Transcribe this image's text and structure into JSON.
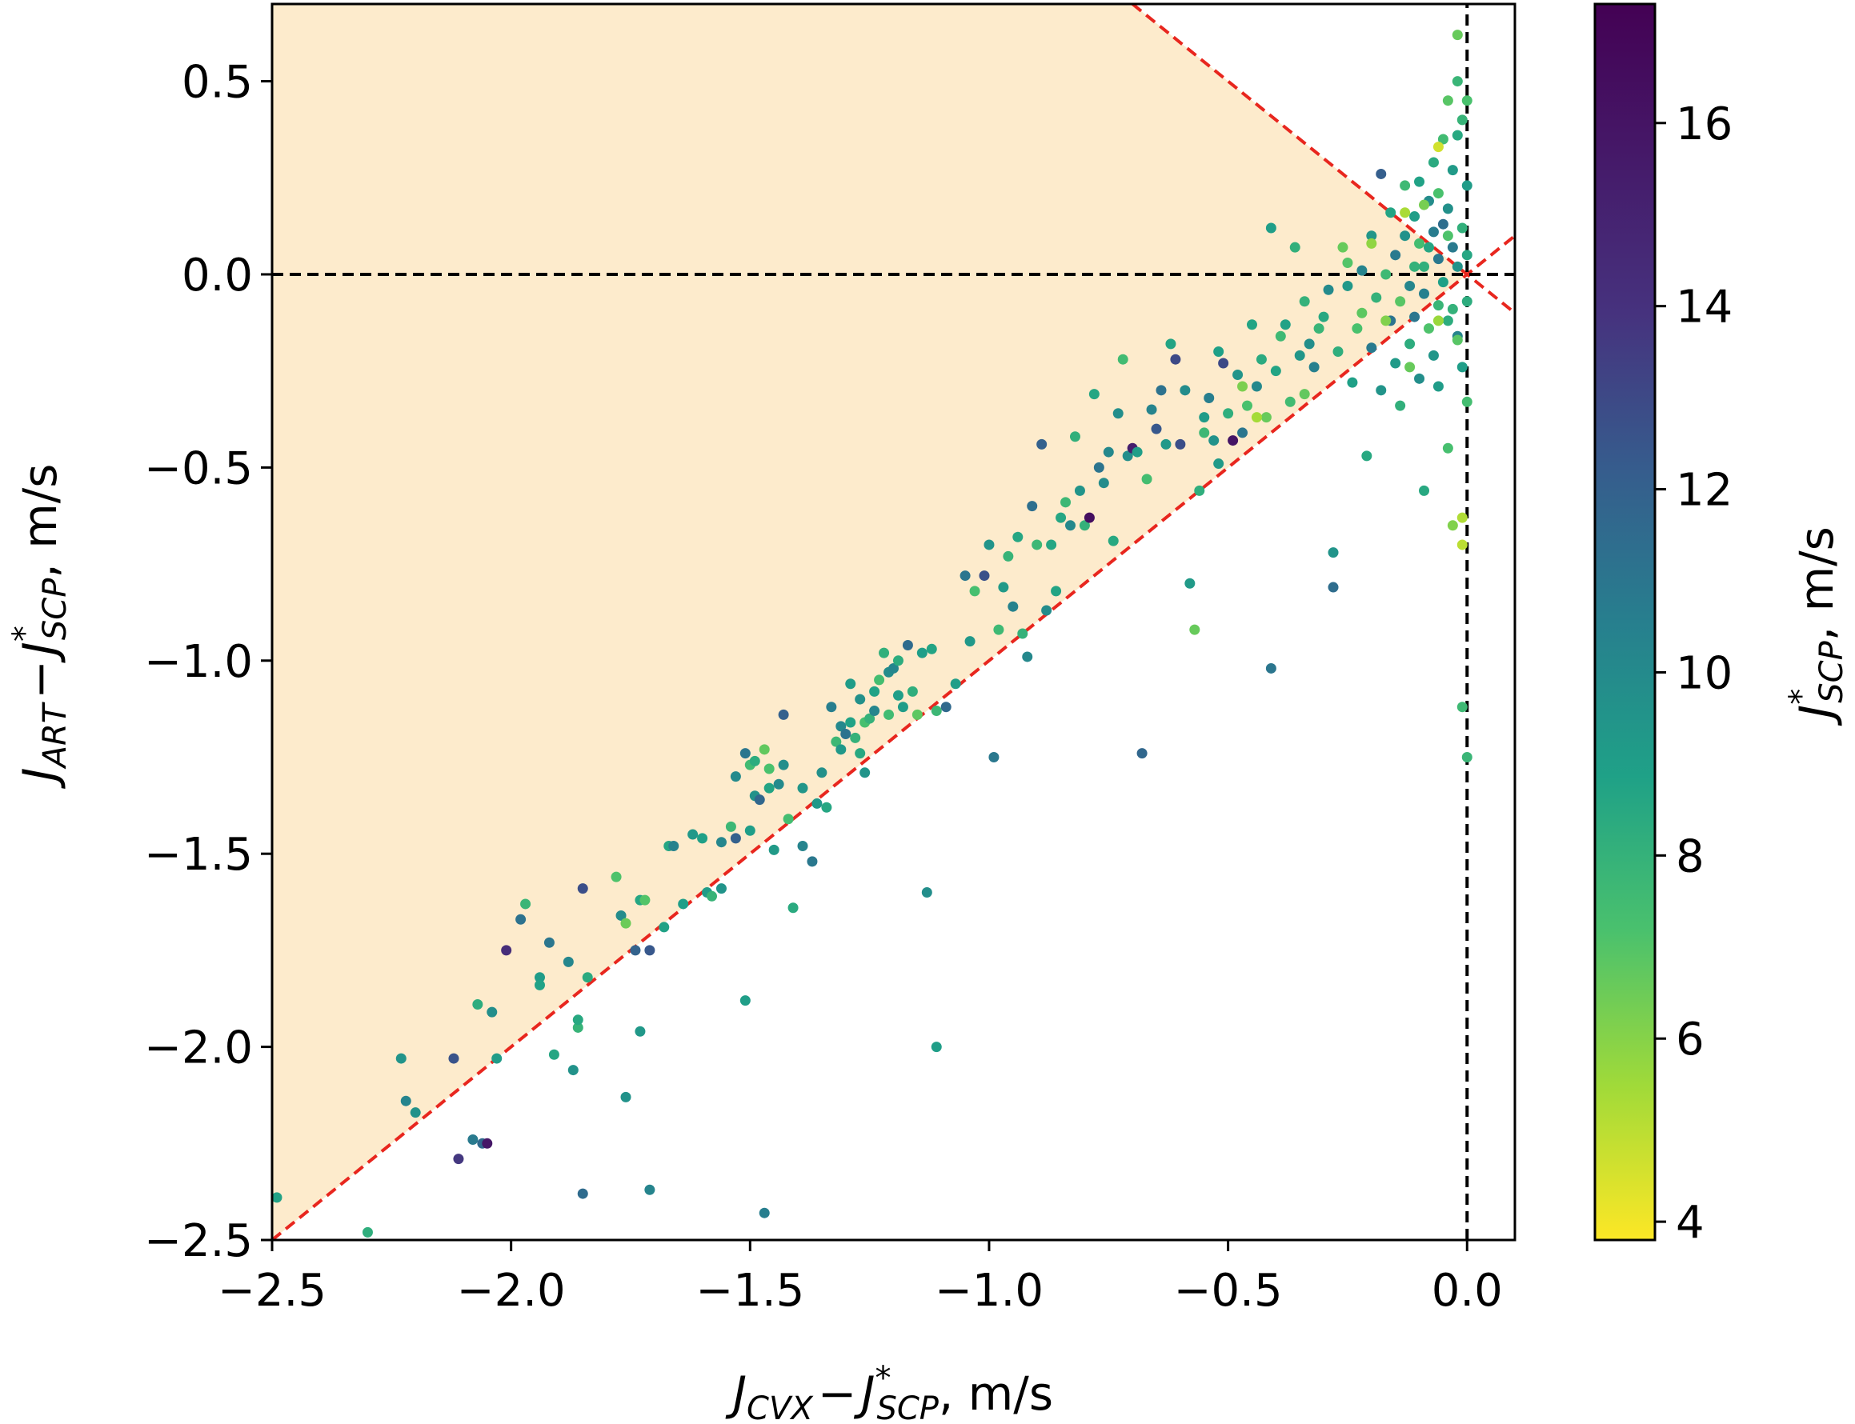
{
  "chart_data": {
    "type": "scatter",
    "xlabel": {
      "main": "J",
      "sub1": "CVX",
      "minus": "−",
      "main2": "J",
      "sup": "*",
      "sub2": "SCP",
      "unit": ", m/s"
    },
    "ylabel": {
      "main": "J",
      "sub1": "ART",
      "minus": "−",
      "main2": "J",
      "sup": "*",
      "sub2": "SCP",
      "unit": ", m/s"
    },
    "colorbar_label": {
      "main": "J",
      "sup": "*",
      "sub": "SCP",
      "unit": ", m/s"
    },
    "xlim": [
      -2.5,
      0.1
    ],
    "ylim": [
      -2.5,
      0.7
    ],
    "xticks": [
      -2.5,
      -2.0,
      -1.5,
      -1.0,
      -0.5,
      0.0
    ],
    "xtick_labels": [
      "−2.5",
      "−2.0",
      "−1.5",
      "−1.0",
      "−0.5",
      "0.0"
    ],
    "yticks": [
      -2.5,
      -2.0,
      -1.5,
      -1.0,
      -0.5,
      0.0,
      0.5
    ],
    "ytick_labels": [
      "−2.5",
      "−2.0",
      "−1.5",
      "−1.0",
      "−0.5",
      "0.0",
      "0.5"
    ],
    "colorbar_range": [
      3.8,
      17.3
    ],
    "colorbar_ticks": [
      4,
      6,
      8,
      10,
      12,
      14,
      16
    ],
    "colorbar_tick_labels": [
      "4",
      "6",
      "8",
      "10",
      "12",
      "14",
      "16"
    ],
    "colormap": "viridis (reversed: yellow = low, purple = high)",
    "shaded_region": {
      "description": "region above y = x and below y = -x",
      "color": "#fdebcc"
    },
    "reference_lines": [
      {
        "type": "y = x",
        "color": "#e8261e",
        "style": "dashed"
      },
      {
        "type": "y = -x",
        "color": "#e8261e",
        "style": "dashed"
      },
      {
        "type": "y = 0",
        "color": "#000000",
        "style": "dashed"
      },
      {
        "type": "x = 0",
        "color": "#000000",
        "style": "dashed"
      }
    ],
    "points": [
      [
        -2.49,
        -2.39,
        8.8
      ],
      [
        -2.3,
        -2.48,
        8.2
      ],
      [
        -2.23,
        -2.03,
        9.5
      ],
      [
        -2.22,
        -2.14,
        10.3
      ],
      [
        -2.2,
        -2.17,
        9.6
      ],
      [
        -2.12,
        -2.03,
        12.6
      ],
      [
        -2.11,
        -2.29,
        13.7
      ],
      [
        -2.08,
        -2.24,
        10.8
      ],
      [
        -2.07,
        -1.89,
        8.3
      ],
      [
        -2.06,
        -2.25,
        11.6
      ],
      [
        -2.05,
        -2.25,
        15.8
      ],
      [
        -2.04,
        -1.91,
        9.8
      ],
      [
        -2.03,
        -2.03,
        9.1
      ],
      [
        -2.01,
        -1.75,
        14.3
      ],
      [
        -1.98,
        -1.67,
        11.2
      ],
      [
        -1.97,
        -1.63,
        7.8
      ],
      [
        -1.94,
        -1.82,
        9.1
      ],
      [
        -1.94,
        -1.84,
        8.8
      ],
      [
        -1.92,
        -1.73,
        11.0
      ],
      [
        -1.91,
        -2.02,
        8.6
      ],
      [
        -1.88,
        -1.78,
        10.2
      ],
      [
        -1.87,
        -2.06,
        9.6
      ],
      [
        -1.86,
        -1.95,
        7.9
      ],
      [
        -1.86,
        -1.93,
        8.5
      ],
      [
        -1.85,
        -2.38,
        11.5
      ],
      [
        -1.85,
        -1.59,
        12.8
      ],
      [
        -1.84,
        -1.82,
        8.4
      ],
      [
        -1.78,
        -1.56,
        7.1
      ],
      [
        -1.77,
        -1.66,
        9.9
      ],
      [
        -1.76,
        -1.68,
        6.5
      ],
      [
        -1.76,
        -2.13,
        9.6
      ],
      [
        -1.74,
        -1.75,
        11.9
      ],
      [
        -1.73,
        -1.62,
        8.6
      ],
      [
        -1.73,
        -1.96,
        9.3
      ],
      [
        -1.72,
        -1.62,
        7.0
      ],
      [
        -1.71,
        -1.75,
        12.4
      ],
      [
        -1.71,
        -2.37,
        10.3
      ],
      [
        -1.68,
        -1.69,
        8.8
      ],
      [
        -1.67,
        -1.48,
        8.6
      ],
      [
        -1.66,
        -1.48,
        10.4
      ],
      [
        -1.64,
        -1.63,
        9.0
      ],
      [
        -1.62,
        -1.45,
        9.3
      ],
      [
        -1.6,
        -1.46,
        8.9
      ],
      [
        -1.59,
        -1.6,
        9.1
      ],
      [
        -1.58,
        -1.61,
        7.9
      ],
      [
        -1.56,
        -1.47,
        10.2
      ],
      [
        -1.56,
        -1.59,
        9.5
      ],
      [
        -1.54,
        -1.43,
        7.7
      ],
      [
        -1.53,
        -1.3,
        10.0
      ],
      [
        -1.53,
        -1.46,
        12.0
      ],
      [
        -1.51,
        -1.88,
        9.0
      ],
      [
        -1.51,
        -1.24,
        11.0
      ],
      [
        -1.5,
        -1.27,
        7.5
      ],
      [
        -1.5,
        -1.44,
        9.0
      ],
      [
        -1.49,
        -1.26,
        8.3
      ],
      [
        -1.49,
        -1.35,
        9.6
      ],
      [
        -1.48,
        -1.36,
        11.7
      ],
      [
        -1.47,
        -1.23,
        6.7
      ],
      [
        -1.47,
        -2.43,
        10.6
      ],
      [
        -1.46,
        -1.28,
        7.2
      ],
      [
        -1.46,
        -1.33,
        8.7
      ],
      [
        -1.45,
        -1.49,
        9.2
      ],
      [
        -1.44,
        -1.32,
        10.0
      ],
      [
        -1.43,
        -1.27,
        9.8
      ],
      [
        -1.43,
        -1.14,
        12.0
      ],
      [
        -1.42,
        -1.41,
        7.4
      ],
      [
        -1.41,
        -1.64,
        8.4
      ],
      [
        -1.39,
        -1.33,
        9.4
      ],
      [
        -1.39,
        -1.48,
        10.3
      ],
      [
        -1.37,
        -1.52,
        10.9
      ],
      [
        -1.36,
        -1.37,
        9.3
      ],
      [
        -1.35,
        -1.29,
        9.7
      ],
      [
        -1.34,
        -1.38,
        8.6
      ],
      [
        -1.33,
        -1.12,
        10.6
      ],
      [
        -1.32,
        -1.21,
        7.7
      ],
      [
        -1.31,
        -1.23,
        9.3
      ],
      [
        -1.31,
        -1.17,
        10.1
      ],
      [
        -1.3,
        -1.19,
        11.2
      ],
      [
        -1.29,
        -1.16,
        8.8
      ],
      [
        -1.29,
        -1.06,
        9.1
      ],
      [
        -1.28,
        -1.2,
        8.0
      ],
      [
        -1.27,
        -1.1,
        9.7
      ],
      [
        -1.27,
        -1.24,
        8.5
      ],
      [
        -1.26,
        -1.16,
        7.3
      ],
      [
        -1.26,
        -1.29,
        9.5
      ],
      [
        -1.25,
        -1.15,
        8.0
      ],
      [
        -1.24,
        -1.08,
        8.8
      ],
      [
        -1.24,
        -1.13,
        10.2
      ],
      [
        -1.23,
        -1.05,
        7.4
      ],
      [
        -1.22,
        -0.98,
        8.1
      ],
      [
        -1.21,
        -1.03,
        9.9
      ],
      [
        -1.21,
        -1.14,
        7.5
      ],
      [
        -1.2,
        -1.02,
        10.2
      ],
      [
        -1.19,
        -1.09,
        9.0
      ],
      [
        -1.19,
        -1.0,
        8.3
      ],
      [
        -1.18,
        -1.12,
        9.1
      ],
      [
        -1.17,
        -0.96,
        11.5
      ],
      [
        -1.16,
        -1.08,
        8.2
      ],
      [
        -1.15,
        -1.14,
        6.8
      ],
      [
        -1.14,
        -0.98,
        9.0
      ],
      [
        -1.13,
        -1.6,
        9.8
      ],
      [
        -1.12,
        -0.97,
        8.7
      ],
      [
        -1.11,
        -2.0,
        9.0
      ],
      [
        -1.11,
        -1.13,
        7.7
      ],
      [
        -1.09,
        -1.12,
        11.6
      ],
      [
        -1.07,
        -1.06,
        9.0
      ],
      [
        -1.05,
        -0.78,
        11.0
      ],
      [
        -1.04,
        -0.95,
        9.3
      ],
      [
        -1.03,
        -0.82,
        7.3
      ],
      [
        -1.01,
        -0.78,
        12.7
      ],
      [
        -1.0,
        -0.7,
        9.5
      ],
      [
        -0.99,
        -1.25,
        10.9
      ],
      [
        -0.98,
        -0.92,
        7.6
      ],
      [
        -0.97,
        -0.81,
        9.2
      ],
      [
        -0.96,
        -0.73,
        7.9
      ],
      [
        -0.95,
        -0.86,
        10.4
      ],
      [
        -0.94,
        -0.68,
        8.6
      ],
      [
        -0.93,
        -0.93,
        8.0
      ],
      [
        -0.92,
        -0.99,
        10.1
      ],
      [
        -0.91,
        -0.6,
        11.3
      ],
      [
        -0.9,
        -0.7,
        7.7
      ],
      [
        -0.89,
        -0.44,
        12.0
      ],
      [
        -0.88,
        -0.87,
        9.9
      ],
      [
        -0.87,
        -0.7,
        8.6
      ],
      [
        -0.86,
        -0.82,
        8.7
      ],
      [
        -0.85,
        -0.63,
        8.6
      ],
      [
        -0.84,
        -0.59,
        7.7
      ],
      [
        -0.83,
        -0.65,
        10.1
      ],
      [
        -0.82,
        -0.42,
        8.1
      ],
      [
        -0.81,
        -0.56,
        9.5
      ],
      [
        -0.8,
        -0.65,
        8.0
      ],
      [
        -0.79,
        -0.63,
        16.4
      ],
      [
        -0.78,
        -0.31,
        8.6
      ],
      [
        -0.77,
        -0.5,
        11.1
      ],
      [
        -0.76,
        -0.54,
        9.9
      ],
      [
        -0.75,
        -0.46,
        10.1
      ],
      [
        -0.74,
        -0.69,
        8.5
      ],
      [
        -0.73,
        -0.36,
        9.8
      ],
      [
        -0.72,
        -0.22,
        7.5
      ],
      [
        -0.71,
        -0.47,
        9.8
      ],
      [
        -0.7,
        -0.45,
        15.3
      ],
      [
        -0.69,
        -0.46,
        9.0
      ],
      [
        -0.68,
        -1.24,
        11.7
      ],
      [
        -0.67,
        -0.53,
        7.4
      ],
      [
        -0.66,
        -0.35,
        10.3
      ],
      [
        -0.65,
        -0.4,
        12.4
      ],
      [
        -0.64,
        -0.3,
        11.2
      ],
      [
        -0.63,
        -0.44,
        9.3
      ],
      [
        -0.62,
        -0.18,
        8.7
      ],
      [
        -0.61,
        -0.22,
        13.0
      ],
      [
        -0.6,
        -0.44,
        12.8
      ],
      [
        -0.59,
        -0.3,
        9.9
      ],
      [
        -0.58,
        -0.8,
        9.2
      ],
      [
        -0.57,
        -0.92,
        6.6
      ],
      [
        -0.56,
        -0.56,
        8.2
      ],
      [
        -0.55,
        -0.37,
        9.1
      ],
      [
        -0.54,
        -0.32,
        10.6
      ],
      [
        -0.53,
        -0.43,
        9.6
      ],
      [
        -0.52,
        -0.49,
        9.2
      ],
      [
        -0.51,
        -0.23,
        13.0
      ],
      [
        -0.5,
        -0.36,
        8.2
      ],
      [
        -0.49,
        -0.43,
        15.9
      ],
      [
        -0.48,
        -0.26,
        9.5
      ],
      [
        -0.47,
        -0.41,
        11.0
      ],
      [
        -0.46,
        -0.34,
        7.2
      ],
      [
        -0.45,
        -0.13,
        8.7
      ],
      [
        -0.44,
        -0.29,
        10.1
      ],
      [
        -0.43,
        -0.22,
        8.4
      ],
      [
        -0.42,
        -0.37,
        6.6
      ],
      [
        -0.41,
        -1.02,
        11.0
      ],
      [
        -0.41,
        0.12,
        9.0
      ],
      [
        -0.4,
        -0.25,
        8.7
      ],
      [
        -0.39,
        -0.16,
        7.6
      ],
      [
        -0.38,
        -0.13,
        8.8
      ],
      [
        -0.37,
        -0.33,
        7.5
      ],
      [
        -0.36,
        0.07,
        8.1
      ],
      [
        -0.35,
        -0.21,
        9.4
      ],
      [
        -0.34,
        -0.07,
        8.0
      ],
      [
        -0.33,
        -0.18,
        9.8
      ],
      [
        -0.32,
        -0.24,
        10.5
      ],
      [
        -0.31,
        -0.14,
        7.8
      ],
      [
        -0.3,
        -0.11,
        8.5
      ],
      [
        -0.29,
        -0.04,
        10.0
      ],
      [
        -0.28,
        -0.81,
        11.4
      ],
      [
        -0.28,
        -0.72,
        9.5
      ],
      [
        -0.27,
        -0.2,
        8.2
      ],
      [
        -0.26,
        0.07,
        6.6
      ],
      [
        -0.25,
        -0.03,
        9.3
      ],
      [
        -0.24,
        -0.28,
        8.9
      ],
      [
        -0.23,
        -0.14,
        7.2
      ],
      [
        -0.22,
        0.01,
        10.3
      ],
      [
        -0.21,
        -0.47,
        8.5
      ],
      [
        -0.2,
        -0.19,
        10.8
      ],
      [
        -0.2,
        0.1,
        9.4
      ],
      [
        -0.19,
        -0.06,
        8.0
      ],
      [
        -0.18,
        0.26,
        12.1
      ],
      [
        -0.18,
        -0.3,
        9.5
      ],
      [
        -0.17,
        0.0,
        7.6
      ],
      [
        -0.16,
        -0.12,
        11.1
      ],
      [
        -0.16,
        0.16,
        8.7
      ],
      [
        -0.15,
        -0.23,
        9.2
      ],
      [
        -0.15,
        0.05,
        10.8
      ],
      [
        -0.14,
        -0.07,
        6.9
      ],
      [
        -0.14,
        -0.34,
        8.1
      ],
      [
        -0.13,
        0.1,
        9.6
      ],
      [
        -0.13,
        0.23,
        7.6
      ],
      [
        -0.12,
        -0.03,
        10.2
      ],
      [
        -0.12,
        -0.18,
        8.3
      ],
      [
        -0.11,
        0.15,
        9.0
      ],
      [
        -0.11,
        -0.11,
        11.0
      ],
      [
        -0.1,
        0.08,
        7.4
      ],
      [
        -0.1,
        -0.27,
        9.8
      ],
      [
        -0.1,
        0.24,
        8.8
      ],
      [
        -0.09,
        -0.05,
        10.5
      ],
      [
        -0.09,
        0.02,
        8.1
      ],
      [
        -0.09,
        -0.56,
        8.5
      ],
      [
        -0.08,
        0.19,
        9.9
      ],
      [
        -0.08,
        -0.14,
        7.1
      ],
      [
        -0.08,
        0.07,
        8.6
      ],
      [
        -0.07,
        0.11,
        10.7
      ],
      [
        -0.07,
        -0.21,
        9.4
      ],
      [
        -0.07,
        0.29,
        8.4
      ],
      [
        -0.06,
        -0.08,
        7.8
      ],
      [
        -0.06,
        0.04,
        10.9
      ],
      [
        -0.06,
        0.21,
        7.2
      ],
      [
        -0.06,
        -0.29,
        9.1
      ],
      [
        -0.05,
        0.13,
        11.4
      ],
      [
        -0.05,
        -0.02,
        8.9
      ],
      [
        -0.05,
        0.35,
        7.5
      ],
      [
        -0.04,
        -0.12,
        8.3
      ],
      [
        -0.04,
        0.17,
        9.7
      ],
      [
        -0.04,
        -0.45,
        7.3
      ],
      [
        -0.04,
        0.45,
        6.9
      ],
      [
        -0.03,
        0.07,
        10.8
      ],
      [
        -0.03,
        -0.09,
        8.0
      ],
      [
        -0.03,
        0.27,
        9.2
      ],
      [
        -0.03,
        -0.65,
        6.1
      ],
      [
        -0.02,
        0.02,
        9.6
      ],
      [
        -0.02,
        0.5,
        7.8
      ],
      [
        -0.02,
        -0.16,
        10.3
      ],
      [
        -0.02,
        0.36,
        8.5
      ],
      [
        -0.02,
        0.62,
        6.6
      ],
      [
        -0.01,
        -0.7,
        5.0
      ],
      [
        -0.01,
        0.12,
        8.1
      ],
      [
        -0.01,
        -0.24,
        9.0
      ],
      [
        -0.01,
        -0.63,
        5.2
      ],
      [
        0.0,
        0.05,
        8.6
      ],
      [
        0.0,
        -1.25,
        7.8
      ],
      [
        -0.01,
        0.4,
        7.9
      ],
      [
        -0.0,
        -0.33,
        7.4
      ],
      [
        -0.0,
        0.23,
        9.1
      ],
      [
        -0.01,
        -1.12,
        7.6
      ],
      [
        -0.0,
        0.45,
        7.2
      ],
      [
        -0.0,
        -0.07,
        8.3
      ],
      [
        -0.06,
        0.33,
        4.6
      ],
      [
        -0.13,
        0.16,
        5.3
      ],
      [
        -0.2,
        0.08,
        5.8
      ],
      [
        -0.17,
        -0.12,
        6.1
      ],
      [
        -0.22,
        -0.1,
        6.8
      ],
      [
        -0.25,
        0.03,
        7.0
      ],
      [
        -0.34,
        -0.31,
        6.7
      ],
      [
        -0.44,
        -0.37,
        5.4
      ],
      [
        -0.47,
        -0.29,
        6.2
      ],
      [
        -0.52,
        -0.2,
        8.9
      ],
      [
        -0.55,
        -0.41,
        7.7
      ],
      [
        -0.06,
        -0.12,
        5.6
      ],
      [
        -0.09,
        0.18,
        6.3
      ],
      [
        -0.12,
        -0.24,
        6.6
      ],
      [
        -0.04,
        0.1,
        7.1
      ],
      [
        -0.11,
        0.02,
        8.0
      ],
      [
        -0.02,
        -0.17,
        6.9
      ]
    ]
  }
}
